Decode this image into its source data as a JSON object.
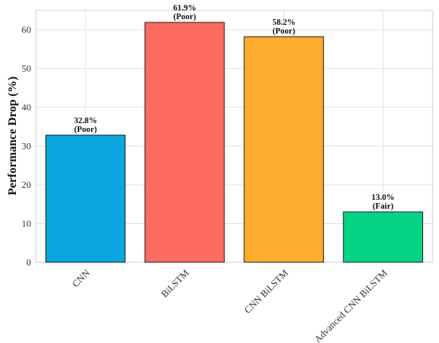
{
  "chart_data": {
    "type": "bar",
    "categories": [
      "CNN",
      "BiLSTM",
      "CNN BiLSTM",
      "Advanced CNN BiLSTM"
    ],
    "values": [
      32.8,
      61.9,
      58.2,
      13.0
    ],
    "value_labels": [
      "32.8%",
      "61.9%",
      "58.2%",
      "13.0%"
    ],
    "rating_labels": [
      "(Poor)",
      "(Poor)",
      "(Poor)",
      "(Fair)"
    ],
    "colors": [
      "#0aa6e0",
      "#fe6b61",
      "#fdac2d",
      "#05d487"
    ],
    "ylabel": "Performance Drop (%)",
    "xlabel": "",
    "title": "",
    "ylim": [
      0,
      65
    ],
    "yticks": [
      0,
      10,
      20,
      30,
      40,
      50,
      60
    ],
    "grid": true
  }
}
